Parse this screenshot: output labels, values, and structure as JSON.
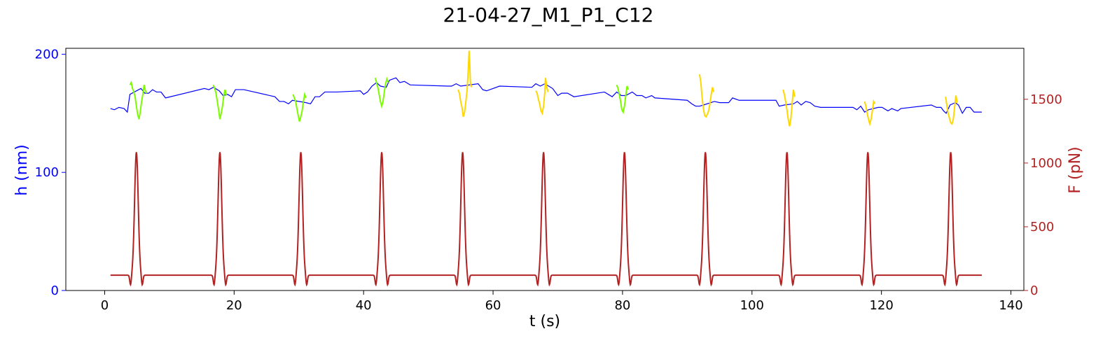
{
  "chart_data": {
    "type": "line",
    "title": "21-04-27_M1_P1_C12",
    "xlabel": "t (s)",
    "ylabel_left": "h (nm)",
    "ylabel_right": "F (pN)",
    "xlim": [
      -6,
      142
    ],
    "ylim_left": [
      0,
      205
    ],
    "ylim_right": [
      0,
      1900
    ],
    "x_ticks": [
      0,
      20,
      40,
      60,
      80,
      100,
      120,
      140
    ],
    "y_ticks_left": [
      0,
      100,
      200
    ],
    "y_ticks_right": [
      0,
      500,
      1000,
      1500
    ],
    "grid": false,
    "colors": {
      "h_base": "#0000ff",
      "h_green": "#7cfc00",
      "h_gold": "#ffd700",
      "force": "#b22222",
      "left_axis": "#0000ff",
      "right_axis": "#b22222",
      "frame": "#000000"
    },
    "h_baseline": {
      "name": "",
      "points": [
        [
          0.9,
          154
        ],
        [
          1.5,
          153
        ],
        [
          2.2,
          155
        ],
        [
          3,
          154
        ],
        [
          3.5,
          151
        ],
        [
          3.9,
          166
        ],
        [
          5.6,
          171
        ],
        [
          6.2,
          167
        ],
        [
          6.8,
          167
        ],
        [
          7.4,
          170
        ],
        [
          8,
          168
        ],
        [
          8.7,
          168
        ],
        [
          9.4,
          163
        ],
        [
          15.4,
          171
        ],
        [
          16.1,
          170
        ],
        [
          16.8,
          172
        ],
        [
          17.7,
          169
        ],
        [
          18.3,
          165
        ],
        [
          19,
          166
        ],
        [
          19.6,
          164
        ],
        [
          20.2,
          170
        ],
        [
          21.5,
          170
        ],
        [
          26.3,
          164
        ],
        [
          27,
          160
        ],
        [
          27.7,
          160
        ],
        [
          28.4,
          158
        ],
        [
          29,
          161
        ],
        [
          31.1,
          159
        ],
        [
          31.8,
          158
        ],
        [
          32.5,
          164
        ],
        [
          33.2,
          164
        ],
        [
          34,
          168
        ],
        [
          35.9,
          168
        ],
        [
          39.5,
          169
        ],
        [
          40,
          166
        ],
        [
          40.6,
          168
        ],
        [
          41.3,
          173
        ],
        [
          42,
          176
        ],
        [
          42.6,
          173
        ],
        [
          43.5,
          172
        ],
        [
          44,
          178
        ],
        [
          45,
          180
        ],
        [
          45.6,
          176
        ],
        [
          46.3,
          177
        ],
        [
          47.2,
          174
        ],
        [
          53,
          173
        ],
        [
          53.6,
          173
        ],
        [
          54.3,
          175
        ],
        [
          55,
          173
        ],
        [
          57.7,
          175
        ],
        [
          58.4,
          170
        ],
        [
          59,
          169
        ],
        [
          60,
          171
        ],
        [
          61,
          173
        ],
        [
          66,
          172
        ],
        [
          66.6,
          175
        ],
        [
          67.3,
          173
        ],
        [
          68,
          175
        ],
        [
          69.2,
          171
        ],
        [
          70,
          165
        ],
        [
          70.6,
          167
        ],
        [
          71.5,
          167
        ],
        [
          72.5,
          164
        ],
        [
          77.2,
          168
        ],
        [
          78.4,
          164
        ],
        [
          79.1,
          168
        ],
        [
          79.8,
          165
        ],
        [
          80.5,
          165
        ],
        [
          81.5,
          168
        ],
        [
          82.2,
          165
        ],
        [
          83,
          165
        ],
        [
          83.6,
          163
        ],
        [
          84.5,
          165
        ],
        [
          85,
          163
        ],
        [
          90,
          161
        ],
        [
          90.7,
          158
        ],
        [
          91.3,
          156
        ],
        [
          91.9,
          156
        ],
        [
          92.5,
          157
        ],
        [
          94.2,
          160
        ],
        [
          95,
          159
        ],
        [
          96.4,
          159
        ],
        [
          97,
          163
        ],
        [
          98,
          161
        ],
        [
          103.7,
          161
        ],
        [
          104.2,
          156
        ],
        [
          105,
          157
        ],
        [
          106.4,
          158
        ],
        [
          107,
          160
        ],
        [
          107.6,
          157
        ],
        [
          108.3,
          160
        ],
        [
          109,
          159
        ],
        [
          109.7,
          156
        ],
        [
          110.6,
          155
        ],
        [
          115.6,
          155
        ],
        [
          116.2,
          153
        ],
        [
          116.8,
          156
        ],
        [
          117.4,
          151
        ],
        [
          118,
          153
        ],
        [
          119.5,
          155
        ],
        [
          120.1,
          155
        ],
        [
          121,
          152
        ],
        [
          121.6,
          154
        ],
        [
          122.5,
          152
        ],
        [
          123,
          154
        ],
        [
          127.7,
          157
        ],
        [
          128.5,
          155
        ],
        [
          129.2,
          155
        ],
        [
          129.6,
          152
        ],
        [
          130,
          150
        ],
        [
          130.6,
          157
        ],
        [
          131.4,
          159
        ],
        [
          131.9,
          157
        ],
        [
          132.5,
          150
        ],
        [
          133.1,
          155
        ],
        [
          133.7,
          155
        ],
        [
          134.3,
          151
        ],
        [
          135.5,
          151
        ]
      ]
    },
    "h_segments": [
      {
        "color": "green",
        "points": [
          [
            3.9,
            174
          ],
          [
            4.1,
            176
          ],
          [
            4.3,
            171
          ],
          [
            4.5,
            168
          ],
          [
            4.7,
            164
          ],
          [
            4.9,
            156
          ],
          [
            5.1,
            149
          ],
          [
            5.3,
            145
          ],
          [
            5.5,
            151
          ],
          [
            5.7,
            160
          ],
          [
            5.9,
            166
          ],
          [
            6.1,
            174
          ],
          [
            6.3,
            169
          ],
          [
            6.5,
            167
          ]
        ]
      },
      {
        "color": "green",
        "points": [
          [
            16.8,
            174
          ],
          [
            17.0,
            171
          ],
          [
            17.2,
            167
          ],
          [
            17.4,
            160
          ],
          [
            17.6,
            153
          ],
          [
            17.8,
            145
          ],
          [
            18.0,
            150
          ],
          [
            18.2,
            156
          ],
          [
            18.4,
            165
          ],
          [
            18.6,
            170
          ],
          [
            18.8,
            165
          ]
        ]
      },
      {
        "color": "green",
        "points": [
          [
            29.1,
            166
          ],
          [
            29.3,
            163
          ],
          [
            29.5,
            160
          ],
          [
            29.7,
            154
          ],
          [
            29.9,
            148
          ],
          [
            30.1,
            143
          ],
          [
            30.3,
            147
          ],
          [
            30.5,
            152
          ],
          [
            30.7,
            160
          ],
          [
            30.9,
            166
          ],
          [
            31.1,
            163
          ]
        ]
      },
      {
        "color": "green",
        "points": [
          [
            41.8,
            180
          ],
          [
            42.0,
            176
          ],
          [
            42.2,
            172
          ],
          [
            42.4,
            166
          ],
          [
            42.6,
            160
          ],
          [
            42.8,
            156
          ],
          [
            43.0,
            160
          ],
          [
            43.2,
            168
          ],
          [
            43.4,
            175
          ],
          [
            43.6,
            179
          ],
          [
            43.8,
            176
          ]
        ]
      },
      {
        "color": "gold",
        "points": [
          [
            54.6,
            170
          ],
          [
            54.8,
            167
          ],
          [
            55.0,
            160
          ],
          [
            55.2,
            155
          ],
          [
            55.4,
            147
          ],
          [
            55.6,
            151
          ],
          [
            55.8,
            160
          ],
          [
            56.0,
            170
          ],
          [
            56.2,
            190
          ],
          [
            56.3,
            203
          ],
          [
            56.4,
            192
          ],
          [
            56.5,
            176
          ],
          [
            56.7,
            172
          ]
        ]
      },
      {
        "color": "gold",
        "points": [
          [
            66.6,
            169
          ],
          [
            66.8,
            167
          ],
          [
            67.0,
            162
          ],
          [
            67.2,
            158
          ],
          [
            67.4,
            152
          ],
          [
            67.6,
            150
          ],
          [
            67.8,
            156
          ],
          [
            68.0,
            168
          ],
          [
            68.1,
            180
          ],
          [
            68.3,
            172
          ],
          [
            68.5,
            168
          ]
        ]
      },
      {
        "color": "green",
        "points": [
          [
            79.1,
            174
          ],
          [
            79.3,
            171
          ],
          [
            79.5,
            166
          ],
          [
            79.7,
            160
          ],
          [
            79.9,
            153
          ],
          [
            80.1,
            151
          ],
          [
            80.3,
            156
          ],
          [
            80.5,
            165
          ],
          [
            80.7,
            173
          ],
          [
            80.9,
            170
          ]
        ]
      },
      {
        "color": "gold",
        "points": [
          [
            91.9,
            183
          ],
          [
            92.1,
            176
          ],
          [
            92.3,
            163
          ],
          [
            92.5,
            154
          ],
          [
            92.7,
            148
          ],
          [
            92.9,
            147
          ],
          [
            93.1,
            149
          ],
          [
            93.3,
            152
          ],
          [
            93.5,
            158
          ],
          [
            93.7,
            166
          ],
          [
            93.9,
            172
          ],
          [
            94.1,
            168
          ]
        ]
      },
      {
        "color": "gold",
        "points": [
          [
            104.8,
            170
          ],
          [
            105.0,
            166
          ],
          [
            105.2,
            160
          ],
          [
            105.4,
            153
          ],
          [
            105.6,
            145
          ],
          [
            105.8,
            139
          ],
          [
            106.0,
            145
          ],
          [
            106.2,
            158
          ],
          [
            106.4,
            170
          ],
          [
            106.6,
            164
          ]
        ]
      },
      {
        "color": "gold",
        "points": [
          [
            117.4,
            160
          ],
          [
            117.6,
            156
          ],
          [
            117.8,
            150
          ],
          [
            118.0,
            145
          ],
          [
            118.2,
            141
          ],
          [
            118.4,
            145
          ],
          [
            118.6,
            152
          ],
          [
            118.8,
            160
          ],
          [
            119.0,
            158
          ]
        ]
      },
      {
        "color": "gold",
        "points": [
          [
            129.9,
            164
          ],
          [
            130.1,
            157
          ],
          [
            130.3,
            150
          ],
          [
            130.5,
            146
          ],
          [
            130.7,
            142
          ],
          [
            130.9,
            141
          ],
          [
            131.1,
            145
          ],
          [
            131.3,
            155
          ],
          [
            131.5,
            165
          ],
          [
            131.7,
            159
          ]
        ]
      }
    ],
    "force_series": {
      "name": "",
      "baseline": 120,
      "start_x": 0.9,
      "end_x": 135.5,
      "dip": 40,
      "peak": 1085,
      "pulse_centers": [
        4.9,
        17.8,
        30.3,
        42.8,
        55.3,
        67.8,
        80.3,
        92.8,
        105.4,
        117.9,
        130.7
      ]
    }
  }
}
